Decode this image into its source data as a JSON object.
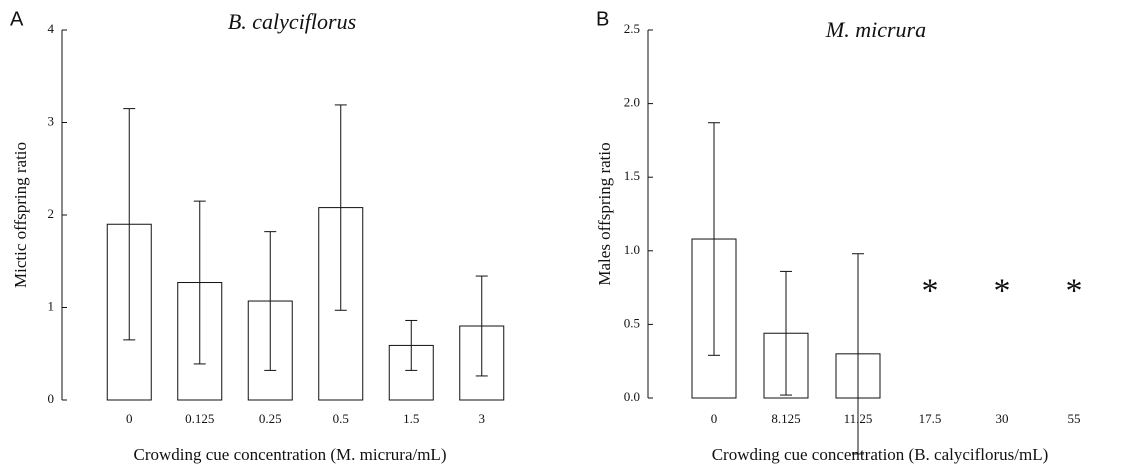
{
  "chart_data": [
    {
      "type": "bar",
      "panel": "A",
      "title": "B. calyciflorus",
      "ylabel": "Mictic offspring ratio",
      "xlabel": "Crowding cue concentration (M. micrura/mL)",
      "categories": [
        "0",
        "0.125",
        "0.25",
        "0.5",
        "1.5",
        "3"
      ],
      "values": [
        1.9,
        1.27,
        1.07,
        2.08,
        0.59,
        0.8
      ],
      "errors": [
        1.25,
        0.88,
        0.75,
        1.11,
        0.27,
        0.54
      ],
      "color": "#ffffff",
      "ylim": [
        0,
        4
      ],
      "yticks": [
        0,
        1,
        2,
        3,
        4
      ]
    },
    {
      "type": "bar",
      "panel": "B",
      "title": "M. micrura",
      "ylabel": "Males offspring ratio",
      "xlabel": "Crowding cue concentration (B. calyciflorus/mL)",
      "categories": [
        "0",
        "8.125",
        "11.25",
        "17.5",
        "30",
        "55"
      ],
      "values": [
        1.08,
        0.44,
        0.3,
        null,
        null,
        null
      ],
      "errors": [
        0.79,
        0.42,
        0.68,
        null,
        null,
        null
      ],
      "annotations": [
        "*",
        "*",
        "*"
      ],
      "color": "#ffffff",
      "ylim": [
        0,
        2.5
      ],
      "yticks": [
        {
          "value": 0,
          "label": "0.0"
        },
        {
          "value": 0.5,
          "label": "0.5"
        },
        {
          "value": 1,
          "label": "1.0"
        },
        {
          "value": 1.5,
          "label": "1.5"
        },
        {
          "value": 2,
          "label": "2.0"
        },
        {
          "value": 2.5,
          "label": "2.5"
        }
      ]
    }
  ]
}
